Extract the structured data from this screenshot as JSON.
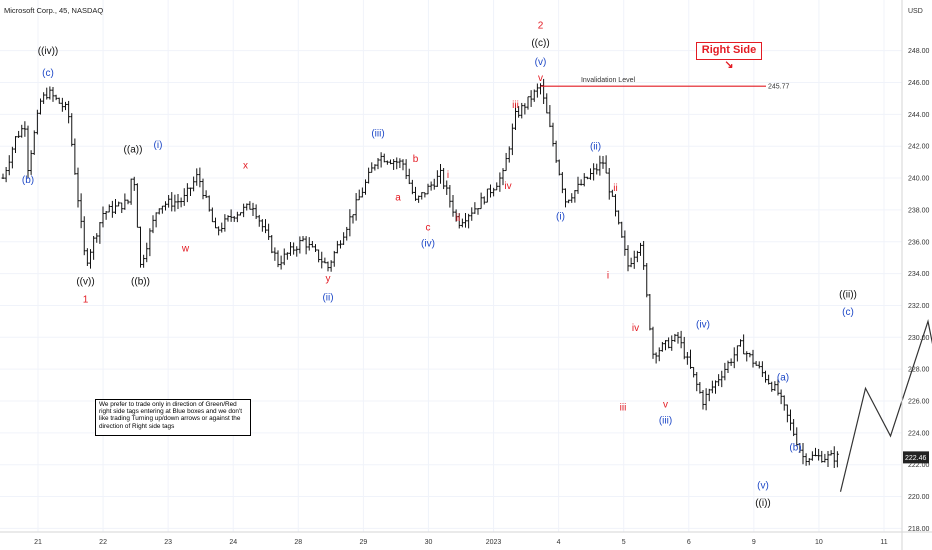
{
  "header": {
    "title": "Microsoft Corp., 45, NASDAQ",
    "currency": "USD"
  },
  "note": "We prefer to trade only in direction of Green/Red right side tags entering at Blue boxes and we don't like trading Turning up/down arrows or against the direction of Right side tags",
  "right_side_tag": {
    "label": "Right Side",
    "arrow": "↘",
    "color": "#e31b23"
  },
  "invalidation": {
    "label": "Invalidation Level",
    "price": 245.77,
    "price_label": "245.77"
  },
  "last_price": {
    "value": 222.46,
    "label": "222.46"
  },
  "chart_data": {
    "type": "ohlc",
    "title": "Microsoft Corp., 45, NASDAQ",
    "ylim": [
      217.5,
      249
    ],
    "y_ticks": [
      218,
      220,
      222,
      224,
      226,
      228,
      230,
      232,
      234,
      236,
      238,
      240,
      242,
      244,
      246,
      248
    ],
    "y_tick_labels": [
      "218.00",
      "220.00",
      "222.00",
      "224.00",
      "226.00",
      "228.00",
      "230.00",
      "232.00",
      "234.00",
      "236.00",
      "238.00",
      "240.00",
      "242.00",
      "244.00",
      "246.00",
      "248.00"
    ],
    "x_tick_labels": [
      "21",
      "22",
      "23",
      "24",
      "28",
      "29",
      "30",
      "2023",
      "4",
      "5",
      "6",
      "9",
      "10",
      "11"
    ],
    "grid": true,
    "price_path": [
      [
        0,
        240
      ],
      [
        0.05,
        242.5
      ],
      [
        0.09,
        243.4
      ],
      [
        0.1,
        240.7
      ],
      [
        0.15,
        244.8
      ],
      [
        0.18,
        245.4
      ],
      [
        0.22,
        244.8
      ],
      [
        0.26,
        244.2
      ],
      [
        0.33,
        234.6
      ],
      [
        0.4,
        237.8
      ],
      [
        0.5,
        238.5
      ],
      [
        0.52,
        240.8
      ],
      [
        0.55,
        234.5
      ],
      [
        0.62,
        238.3
      ],
      [
        0.72,
        238.6
      ],
      [
        0.78,
        240.2
      ],
      [
        0.85,
        236.6
      ],
      [
        0.92,
        237.7
      ],
      [
        1.0,
        238.3
      ],
      [
        1.1,
        234.7
      ],
      [
        1.2,
        236.1
      ],
      [
        1.3,
        234.4
      ],
      [
        1.5,
        241.4
      ],
      [
        1.6,
        240.9
      ],
      [
        1.65,
        238.5
      ],
      [
        1.75,
        240.2
      ],
      [
        1.82,
        237.2
      ],
      [
        1.9,
        238.3
      ],
      [
        2.0,
        240.2
      ],
      [
        2.05,
        243.9
      ],
      [
        2.15,
        245.77
      ],
      [
        2.25,
        238.6
      ],
      [
        2.4,
        241.0
      ],
      [
        2.5,
        234.5
      ],
      [
        2.55,
        236.0
      ],
      [
        2.6,
        229.0
      ],
      [
        2.7,
        230.0
      ],
      [
        2.8,
        226.0
      ],
      [
        2.95,
        229.5
      ],
      [
        3.1,
        226.5
      ],
      [
        3.2,
        222.5
      ],
      [
        3.35,
        222.46
      ]
    ],
    "projection_path": [
      [
        3.35,
        220.3
      ],
      [
        3.45,
        226.8
      ],
      [
        3.55,
        223.8
      ],
      [
        3.7,
        231.0
      ],
      [
        3.85,
        219.3
      ]
    ],
    "wave_labels": [
      {
        "text": "((iv))",
        "x": 0.18,
        "price": 247.8,
        "color": "#111111"
      },
      {
        "text": "(c)",
        "x": 0.18,
        "price": 246.4,
        "color": "#1f49c7"
      },
      {
        "text": "(b)",
        "x": 0.1,
        "price": 239.7,
        "color": "#1f49c7"
      },
      {
        "text": "((v))",
        "x": 0.33,
        "price": 233.3,
        "color": "#111111"
      },
      {
        "text": "1",
        "x": 0.33,
        "price": 232.2,
        "color": "#e31b23"
      },
      {
        "text": "((a))",
        "x": 0.52,
        "price": 241.6,
        "color": "#111111"
      },
      {
        "text": "((b))",
        "x": 0.55,
        "price": 233.3,
        "color": "#111111"
      },
      {
        "text": "(i)",
        "x": 0.62,
        "price": 241.9,
        "color": "#1f49c7"
      },
      {
        "text": "w",
        "x": 0.73,
        "price": 235.4,
        "color": "#e31b23"
      },
      {
        "text": "x",
        "x": 0.97,
        "price": 240.6,
        "color": "#e31b23"
      },
      {
        "text": "y",
        "x": 1.3,
        "price": 233.5,
        "color": "#e31b23"
      },
      {
        "text": "(ii)",
        "x": 1.3,
        "price": 232.3,
        "color": "#1f49c7"
      },
      {
        "text": "(iii)",
        "x": 1.5,
        "price": 242.6,
        "color": "#1f49c7"
      },
      {
        "text": "a",
        "x": 1.58,
        "price": 238.6,
        "color": "#e31b23"
      },
      {
        "text": "b",
        "x": 1.65,
        "price": 241.0,
        "color": "#e31b23"
      },
      {
        "text": "c",
        "x": 1.7,
        "price": 236.7,
        "color": "#e31b23"
      },
      {
        "text": "(iv)",
        "x": 1.7,
        "price": 235.7,
        "color": "#1f49c7"
      },
      {
        "text": "i",
        "x": 1.78,
        "price": 240.0,
        "color": "#e31b23"
      },
      {
        "text": "ii",
        "x": 1.82,
        "price": 237.3,
        "color": "#e31b23"
      },
      {
        "text": "iii",
        "x": 2.05,
        "price": 244.4,
        "color": "#e31b23"
      },
      {
        "text": "iv",
        "x": 2.02,
        "price": 239.3,
        "color": "#e31b23"
      },
      {
        "text": "v",
        "x": 2.15,
        "price": 246.1,
        "color": "#e31b23"
      },
      {
        "text": "(v)",
        "x": 2.15,
        "price": 247.1,
        "color": "#1f49c7"
      },
      {
        "text": "((c))",
        "x": 2.15,
        "price": 248.3,
        "color": "#111111"
      },
      {
        "text": "2",
        "x": 2.15,
        "price": 249.4,
        "color": "#e31b23"
      },
      {
        "text": "(i)",
        "x": 2.23,
        "price": 237.4,
        "color": "#1f49c7"
      },
      {
        "text": "(ii)",
        "x": 2.37,
        "price": 241.8,
        "color": "#1f49c7"
      },
      {
        "text": "ii",
        "x": 2.45,
        "price": 239.2,
        "color": "#e31b23"
      },
      {
        "text": "i",
        "x": 2.42,
        "price": 233.7,
        "color": "#e31b23"
      },
      {
        "text": "iii",
        "x": 2.48,
        "price": 225.4,
        "color": "#e31b23"
      },
      {
        "text": "iv",
        "x": 2.53,
        "price": 230.4,
        "color": "#e31b23"
      },
      {
        "text": "v",
        "x": 2.65,
        "price": 225.6,
        "color": "#e31b23"
      },
      {
        "text": "(iii)",
        "x": 2.65,
        "price": 224.6,
        "color": "#1f49c7"
      },
      {
        "text": "(iv)",
        "x": 2.8,
        "price": 230.6,
        "color": "#1f49c7"
      },
      {
        "text": "(a)",
        "x": 3.12,
        "price": 227.3,
        "color": "#1f49c7"
      },
      {
        "text": "(b)",
        "x": 3.17,
        "price": 222.9,
        "color": "#1f49c7"
      },
      {
        "text": "((ii))",
        "x": 3.38,
        "price": 232.5,
        "color": "#111111"
      },
      {
        "text": "(c)",
        "x": 3.38,
        "price": 231.4,
        "color": "#1f49c7"
      },
      {
        "text": "(v)",
        "x": 3.04,
        "price": 220.5,
        "color": "#1f49c7"
      },
      {
        "text": "((i))",
        "x": 3.04,
        "price": 219.4,
        "color": "#111111"
      }
    ]
  }
}
